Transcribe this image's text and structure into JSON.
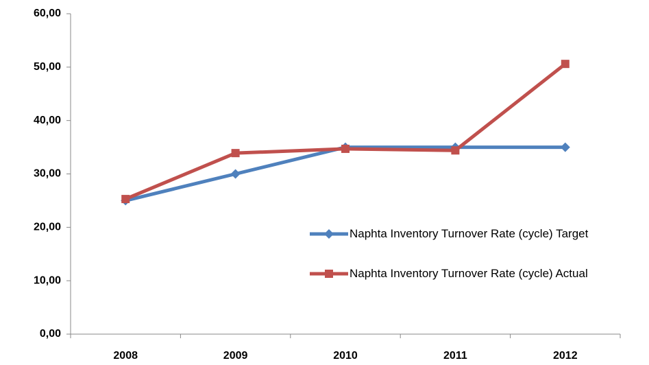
{
  "chart_data": {
    "type": "line",
    "categories": [
      "2008",
      "2009",
      "2010",
      "2011",
      "2012"
    ],
    "series": [
      {
        "name": "Naphta Inventory Turnover Rate (cycle) Target",
        "color": "#4f81bd",
        "marker": "diamond",
        "values": [
          25,
          30,
          35,
          35,
          35
        ]
      },
      {
        "name": "Naphta Inventory Turnover Rate (cycle) Actual",
        "color": "#c0504d",
        "marker": "square",
        "values": [
          25.3,
          33.9,
          34.7,
          34.4,
          50.6
        ]
      }
    ],
    "ylim": [
      0,
      60
    ],
    "yticks": [
      {
        "value": 0,
        "label": "0,00"
      },
      {
        "value": 10,
        "label": "10,00"
      },
      {
        "value": 20,
        "label": "20,00"
      },
      {
        "value": 30,
        "label": "30,00"
      },
      {
        "value": 40,
        "label": "40,00"
      },
      {
        "value": 50,
        "label": "50,00"
      },
      {
        "value": 60,
        "label": "60,00"
      }
    ],
    "grid": false,
    "legend": "right"
  }
}
